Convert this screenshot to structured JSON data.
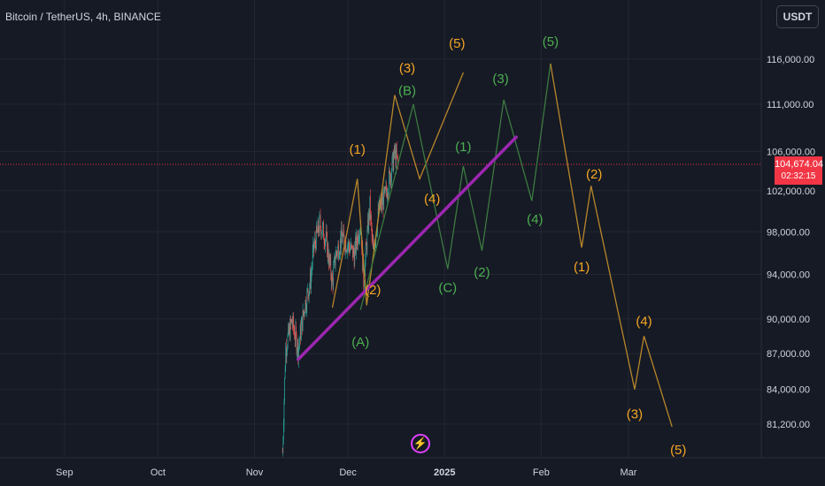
{
  "header": {
    "symbol_title": "Bitcoin / TetherUS, 4h, BINANCE",
    "currency_button": "USDT"
  },
  "price_tag": {
    "price": "104,674.04",
    "countdown": "02:32:15"
  },
  "icons": {
    "flash": "lightning-icon"
  },
  "colors": {
    "background": "#161a25",
    "grid": "#232733",
    "axis_text": "#d1d4dc",
    "candle_up": "#26a69a",
    "candle_down": "#ef5350",
    "trendline": "#9c27b0",
    "wave_orange": "#f5a623",
    "wave_green": "#4caf50",
    "price_line": "#f23645"
  },
  "chart_data": {
    "type": "candlestick",
    "y_axis": {
      "ticks": [
        116000,
        111000,
        106000,
        102000,
        98000,
        94000,
        90000,
        87000,
        84000,
        81200
      ],
      "tick_labels": [
        "116,000.00",
        "111,000.00",
        "106,000.00",
        "102,000.00",
        "98,000.00",
        "94,000.00",
        "90,000.00",
        "87,000.00",
        "84,000.00",
        "81,200.00"
      ],
      "scale": "log"
    },
    "x_axis": {
      "range": [
        "2024-08-17",
        "2025-03-21"
      ],
      "ticks": [
        {
          "date": "2024-09-01",
          "label": "Sep"
        },
        {
          "date": "2024-10-01",
          "label": "Oct"
        },
        {
          "date": "2024-11-01",
          "label": "Nov"
        },
        {
          "date": "2024-12-01",
          "label": "Dec"
        },
        {
          "date": "2025-01-01",
          "label": "2025"
        },
        {
          "date": "2025-02-01",
          "label": "Feb"
        },
        {
          "date": "2025-03-01",
          "label": "Mar"
        }
      ]
    },
    "current_price": 104674.04,
    "candle_path": [
      [
        "2024-11-10",
        79000
      ],
      [
        "2024-11-11",
        87500
      ],
      [
        "2024-11-13",
        89800
      ],
      [
        "2024-11-15",
        87400
      ],
      [
        "2024-11-17",
        91000
      ],
      [
        "2024-11-19",
        93500
      ],
      [
        "2024-11-20",
        96500
      ],
      [
        "2024-11-22",
        98800
      ],
      [
        "2024-11-24",
        97200
      ],
      [
        "2024-11-26",
        93200
      ],
      [
        "2024-11-27",
        95800
      ],
      [
        "2024-11-29",
        97400
      ],
      [
        "2024-12-01",
        96800
      ],
      [
        "2024-12-03",
        95800
      ],
      [
        "2024-12-05",
        99000
      ],
      [
        "2024-12-06",
        93500
      ],
      [
        "2024-12-08",
        100500
      ],
      [
        "2024-12-09",
        96000
      ],
      [
        "2024-12-11",
        100200
      ],
      [
        "2024-12-13",
        101500
      ],
      [
        "2024-12-15",
        104300
      ],
      [
        "2024-12-16",
        105800
      ],
      [
        "2024-12-17",
        104674
      ]
    ],
    "trendline": [
      [
        "2024-11-15",
        86500
      ],
      [
        "2025-01-24",
        107500
      ]
    ],
    "wave_paths": [
      {
        "color": "orange",
        "points": [
          [
            "2024-11-26",
            91000
          ],
          [
            "2024-12-04",
            103200
          ],
          [
            "2024-12-07",
            91200
          ],
          [
            "2024-12-16",
            112000
          ],
          [
            "2024-12-24",
            103200
          ],
          [
            "2025-01-07",
            114500
          ]
        ]
      },
      {
        "color": "green",
        "points": [
          [
            "2024-12-05",
            90800
          ],
          [
            "2024-12-22",
            111000
          ],
          [
            "2025-01-02",
            94500
          ],
          [
            "2025-01-07",
            104500
          ],
          [
            "2025-01-13",
            96200
          ],
          [
            "2025-01-20",
            111500
          ],
          [
            "2025-01-29",
            101000
          ],
          [
            "2025-02-04",
            115500
          ]
        ]
      },
      {
        "color": "orange",
        "points": [
          [
            "2025-02-04",
            115500
          ],
          [
            "2025-02-14",
            96500
          ],
          [
            "2025-02-17",
            102500
          ],
          [
            "2025-03-03",
            84000
          ],
          [
            "2025-03-06",
            88500
          ],
          [
            "2025-03-15",
            81000
          ]
        ]
      }
    ],
    "labels": [
      {
        "text": "(3)",
        "color": "orange",
        "date": "2024-12-20",
        "price": 115000
      },
      {
        "text": "(5)",
        "color": "orange",
        "date": "2025-01-05",
        "price": 117800
      },
      {
        "text": "(B)",
        "color": "green",
        "date": "2024-12-20",
        "price": 112500
      },
      {
        "text": "(3)",
        "color": "green",
        "date": "2025-01-19",
        "price": 113800
      },
      {
        "text": "(5)",
        "color": "green",
        "date": "2025-02-04",
        "price": 118000
      },
      {
        "text": "(1)",
        "color": "orange",
        "date": "2024-12-04",
        "price": 106200
      },
      {
        "text": "(1)",
        "color": "green",
        "date": "2025-01-07",
        "price": 106500
      },
      {
        "text": "(4)",
        "color": "orange",
        "date": "2024-12-28",
        "price": 101200
      },
      {
        "text": "(4)",
        "color": "green",
        "date": "2025-01-30",
        "price": 99200
      },
      {
        "text": "(2)",
        "color": "orange",
        "date": "2024-12-09",
        "price": 92600
      },
      {
        "text": "(C)",
        "color": "green",
        "date": "2025-01-02",
        "price": 92800
      },
      {
        "text": "(2)",
        "color": "green",
        "date": "2025-01-13",
        "price": 94200
      },
      {
        "text": "(A)",
        "color": "green",
        "date": "2024-12-05",
        "price": 88000
      },
      {
        "text": "(2)",
        "color": "orange",
        "date": "2025-02-18",
        "price": 103700
      },
      {
        "text": "(1)",
        "color": "orange",
        "date": "2025-02-14",
        "price": 94700
      },
      {
        "text": "(4)",
        "color": "orange",
        "date": "2025-03-06",
        "price": 89800
      },
      {
        "text": "(3)",
        "color": "orange",
        "date": "2025-03-03",
        "price": 82000
      },
      {
        "text": "(5)",
        "color": "orange",
        "date": "2025-03-17",
        "price": 79200
      }
    ]
  }
}
